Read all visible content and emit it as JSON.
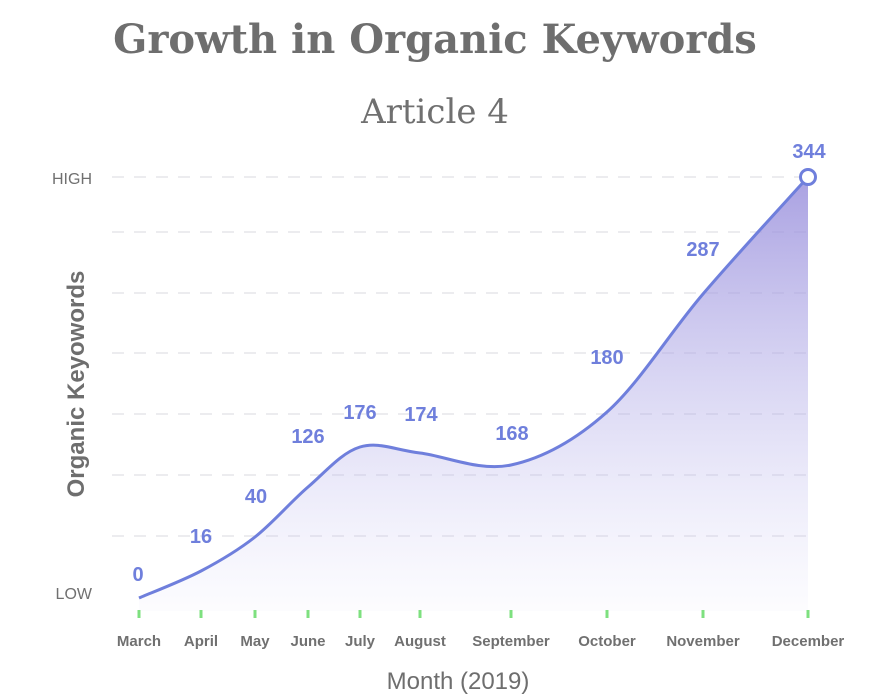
{
  "chart_data": {
    "type": "area",
    "title": "Growth in Organic Keywords",
    "subtitle": "Article 4",
    "xlabel": "Month (2019)",
    "ylabel": "Organic Keyowords",
    "y_tick_labels": [
      "LOW",
      "HIGH"
    ],
    "categories": [
      "March",
      "April",
      "May",
      "June",
      "July",
      "August",
      "September",
      "October",
      "November",
      "December"
    ],
    "values": [
      0,
      16,
      40,
      126,
      176,
      174,
      168,
      180,
      287,
      344
    ],
    "ylim": [
      0,
      344
    ],
    "grid": true,
    "colors": {
      "line": "#6f7fdc",
      "label": "#6f7fdc",
      "fill_top": "#9a90dc",
      "axis_green": "#7ee07f",
      "axis_blue": "#66c7e8",
      "grid": "#e6e6ea",
      "text": "#6e6e6e"
    }
  }
}
